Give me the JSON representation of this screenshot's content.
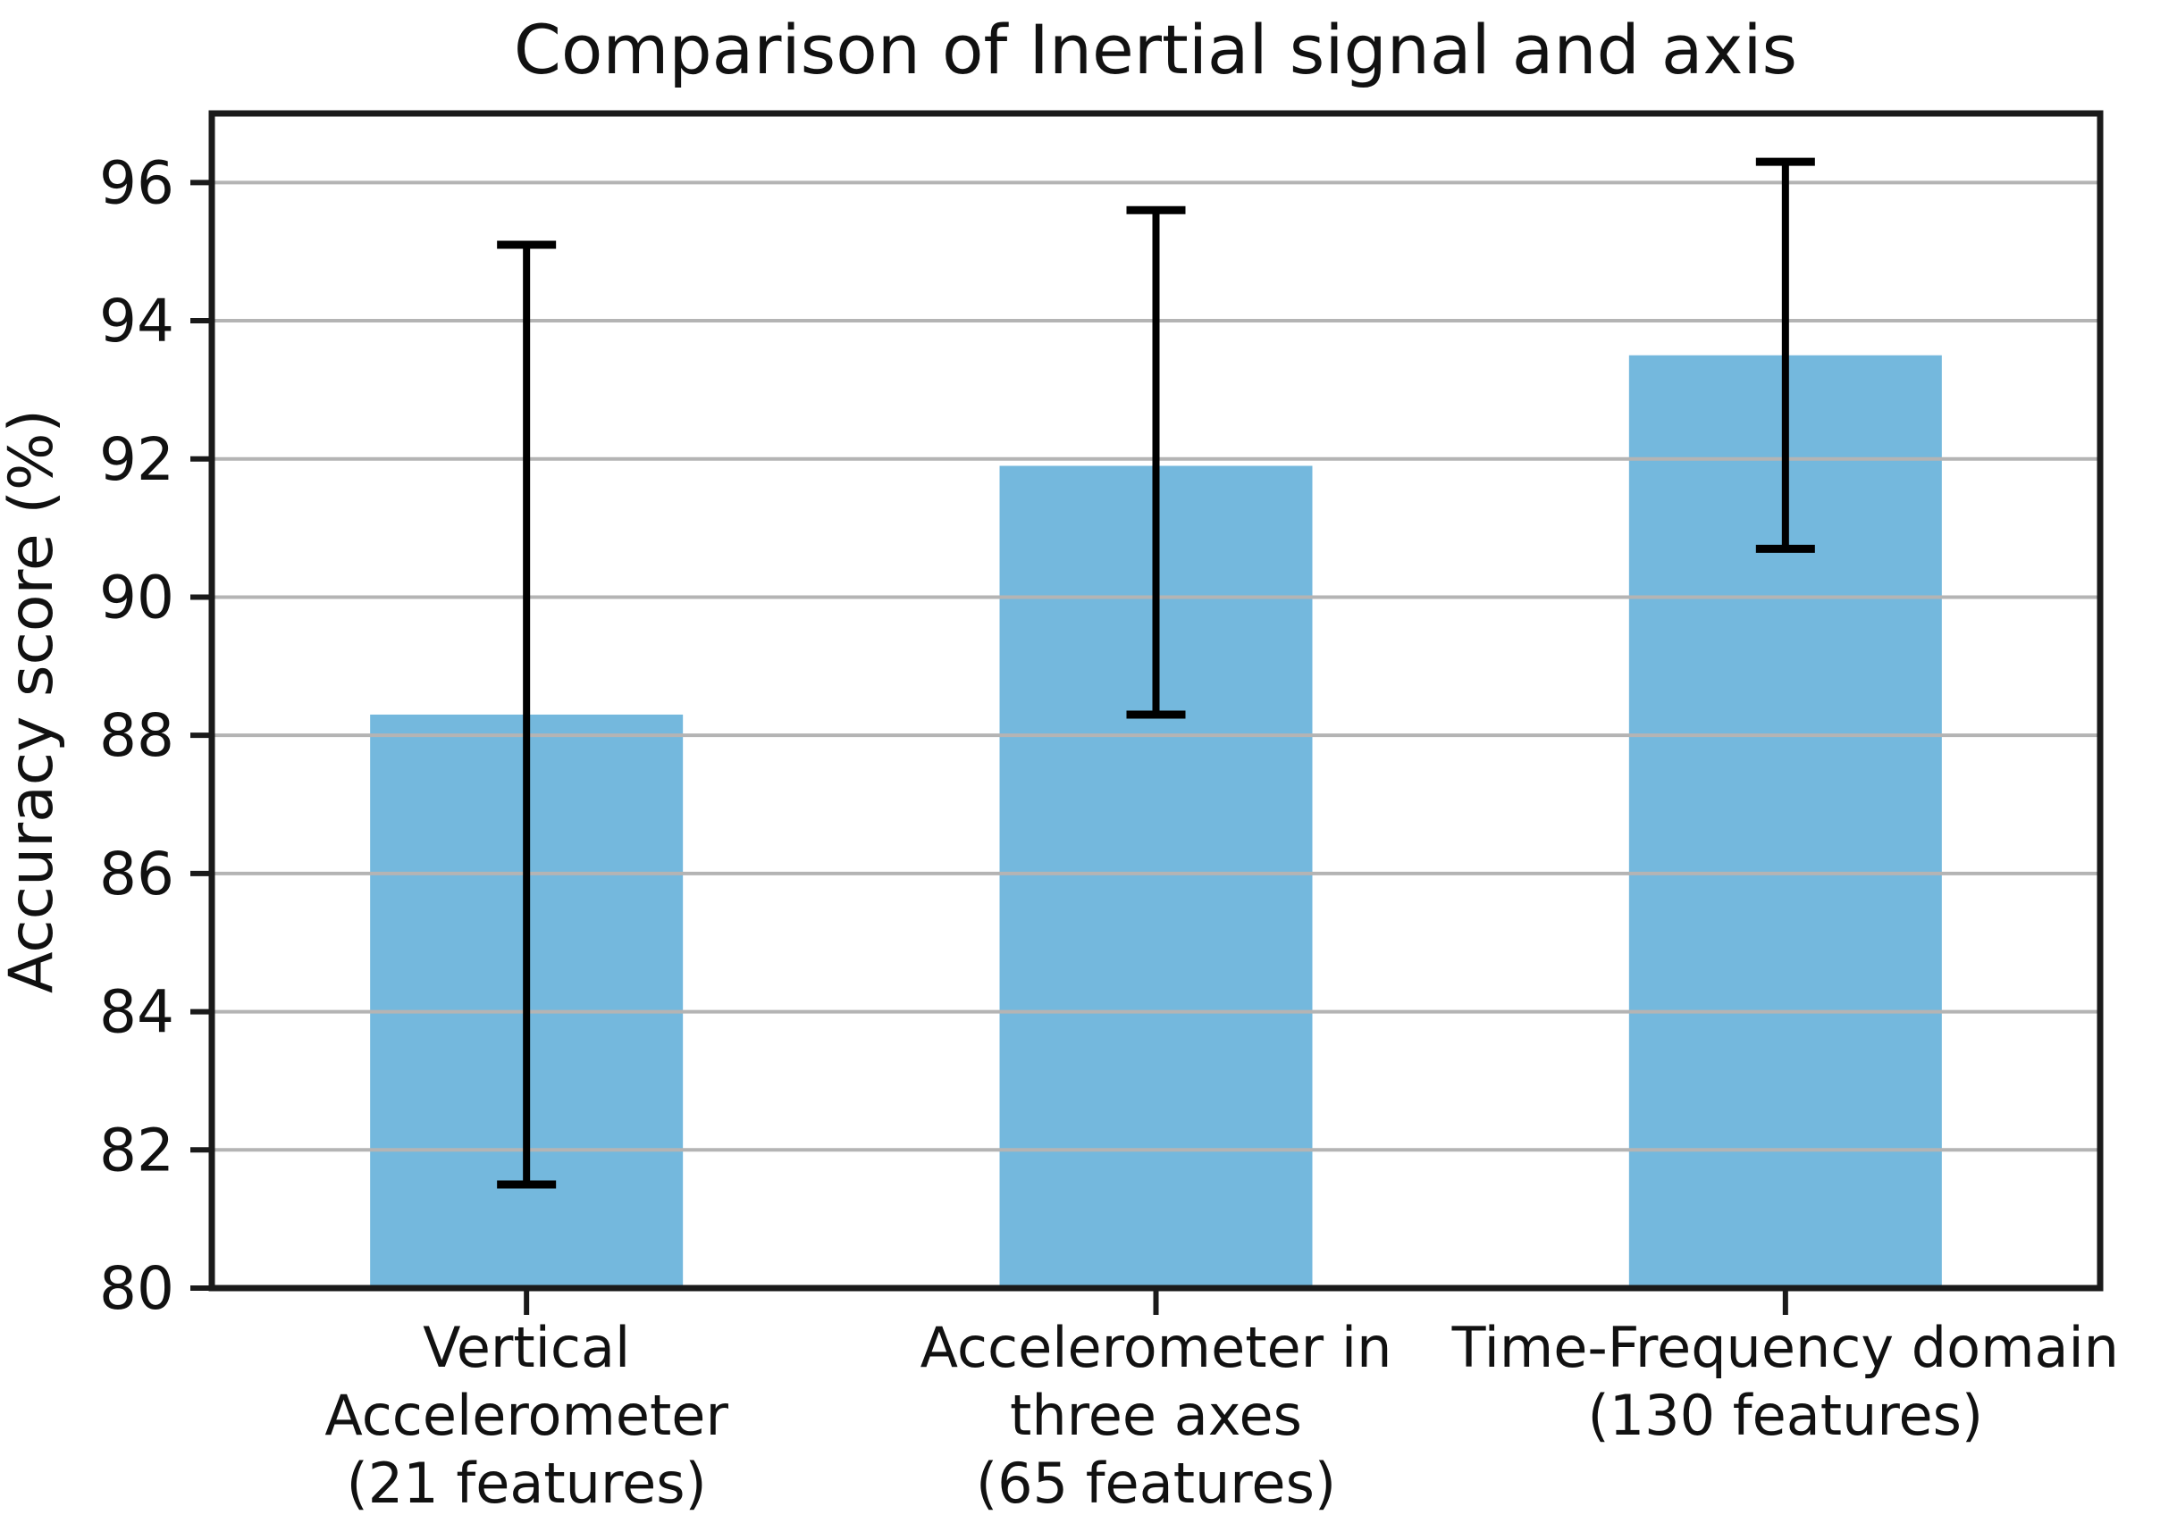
{
  "chart_data": {
    "type": "bar",
    "title": "Comparison of Inertial signal and axis",
    "xlabel": "",
    "ylabel": "Accuracy score (%)",
    "ylim": [
      80,
      97
    ],
    "yticks": [
      80,
      82,
      84,
      86,
      88,
      90,
      92,
      94,
      96
    ],
    "grid": "horizontal",
    "legend_position": "none",
    "bar_color": "#74b8dd",
    "error_bar_color": "#000000",
    "grid_color": "#b4b4b4",
    "spine_color": "#1a1a1a",
    "categories": [
      "Vertical Accelerometer (21 features)",
      "Accelerometer in three axes (65 features)",
      "Time-Frequency domain (130 features)"
    ],
    "category_lines": [
      [
        "Vertical",
        "Accelerometer",
        "(21 features)"
      ],
      [
        "Accelerometer in",
        "three axes",
        "(65 features)"
      ],
      [
        "Time-Frequency domain",
        "(130 features)"
      ]
    ],
    "series": [
      {
        "name": "Accuracy score (%)",
        "values": [
          88.3,
          91.9,
          93.5
        ],
        "error_low": [
          81.5,
          88.3,
          90.7
        ],
        "error_high": [
          95.1,
          95.6,
          96.3
        ]
      }
    ]
  }
}
